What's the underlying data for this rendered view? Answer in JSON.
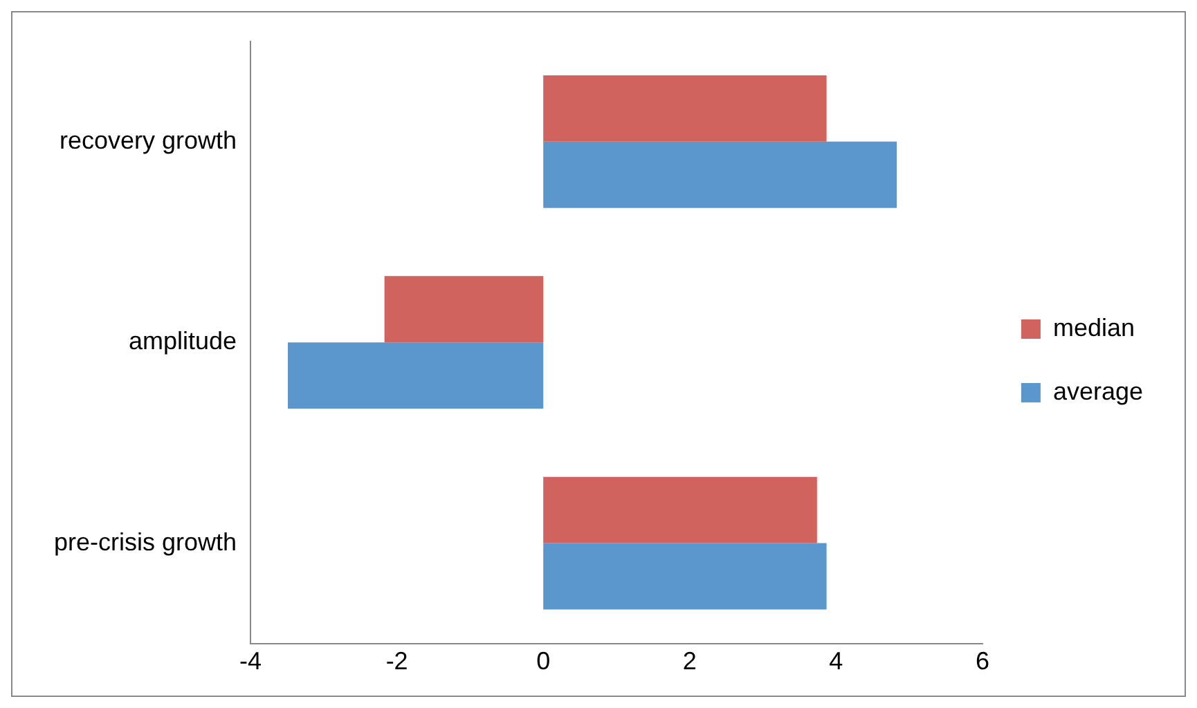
{
  "chart_data": {
    "type": "bar",
    "orientation": "horizontal",
    "categories": [
      "recovery growth",
      "amplitude",
      "pre-crisis growth"
    ],
    "series": [
      {
        "name": "median",
        "color": "#d0635d",
        "values": [
          3.87,
          -2.17,
          3.74
        ]
      },
      {
        "name": "average",
        "color": "#5b96cc",
        "values": [
          4.83,
          -3.49,
          3.87
        ]
      }
    ],
    "xlim": [
      -4,
      6
    ],
    "xticks": [
      -4,
      -2,
      0,
      2,
      4,
      6
    ],
    "grid": false,
    "legend": "right"
  }
}
